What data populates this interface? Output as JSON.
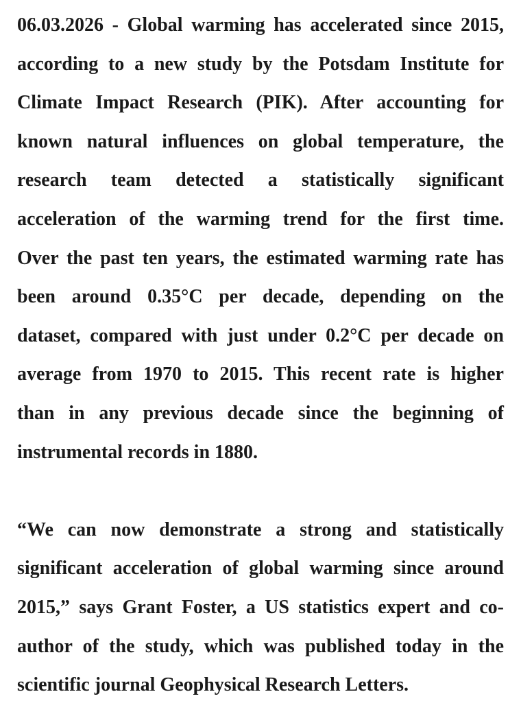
{
  "page": {
    "background_color": "#ffffff",
    "text_color": "#1a1a1a"
  },
  "article": {
    "paragraphs": [
      {
        "lines": [
          "06.03.2026 - Global warming has accelerated since 2015,",
          "according to a new study by the Potsdam Institute for",
          "Climate Impact Research (PIK). After accounting for",
          "known natural influences on global temperature, the",
          "research team detected a statistically significant",
          "acceleration of the warming trend for the first time.",
          "Over the past ten years, the estimated warming rate has",
          "been around 0.35°C per decade, depending on the",
          "dataset, compared with just under 0.2°C per decade on",
          "average from 1970 to 2015. This recent rate is higher",
          "than in any previous decade since the beginning of",
          "instrumental records in 1880."
        ]
      },
      {
        "lines": [
          "“We can now demonstrate a strong and statistically",
          "significant acceleration of global warming since around",
          "2015,” says Grant Foster, a US statistics expert and co-",
          "author of the study, which was published today in the",
          "scientific journal Geophysical Research Letters."
        ]
      }
    ]
  }
}
